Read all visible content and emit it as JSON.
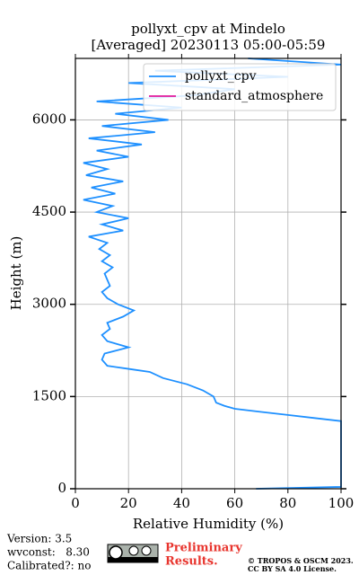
{
  "chart_data": {
    "type": "line",
    "title": "pollyxt_cpv at Mindelo",
    "subtitle": "[Averaged] 20230113 05:00-05:59",
    "x_label": "Relative Humidity (%)",
    "y_label": "Height (m)",
    "y": [
      0,
      30,
      1100,
      1150,
      1200,
      1250,
      1300,
      1350,
      1400,
      1500,
      1600,
      1700,
      1800,
      1900,
      1950,
      2000,
      2100,
      2200,
      2300,
      2400,
      2500,
      2600,
      2700,
      2800,
      2900,
      3000,
      3100,
      3200,
      3300,
      3400,
      3500,
      3600,
      3700,
      3800,
      3900,
      4000,
      4100,
      4200,
      4300,
      4400,
      4500,
      4600,
      4700,
      4800,
      4900,
      5000,
      5100,
      5200,
      5300,
      5400,
      5500,
      5600,
      5700,
      5800,
      5900,
      6000,
      6100,
      6200,
      6300,
      6400,
      6500,
      6600,
      6700,
      6800,
      6900,
      7000
    ],
    "series": [
      {
        "name": "pollyxt_cpv",
        "color": "#1e90ff",
        "values": [
          68,
          100,
          100,
          90,
          80,
          70,
          60,
          56,
          53,
          52,
          48,
          42,
          33,
          28,
          20,
          12,
          10,
          11,
          20,
          12,
          10,
          13,
          12,
          18,
          22,
          16,
          12,
          10,
          13,
          12,
          11,
          14,
          10,
          13,
          9,
          12,
          5,
          18,
          10,
          20,
          8,
          14,
          3,
          15,
          6,
          18,
          4,
          12,
          3,
          20,
          8,
          25,
          5,
          30,
          10,
          35,
          15,
          40,
          8,
          45,
          60,
          20,
          80,
          30,
          100,
          65
        ]
      },
      {
        "name": "standard_atmosphere",
        "color": "#e0199c",
        "values": [
          null,
          null,
          null,
          null,
          null,
          null,
          null,
          null,
          null,
          null,
          null,
          null,
          null,
          null,
          null,
          null,
          null,
          null,
          null,
          null,
          null,
          null,
          null,
          null,
          null,
          null,
          null,
          null,
          null,
          null,
          null,
          null,
          null,
          null,
          null,
          null,
          null,
          null,
          null,
          null,
          null,
          null,
          null,
          null,
          null,
          null,
          null,
          null,
          null,
          null,
          null,
          null,
          null,
          null,
          null,
          null,
          null,
          null,
          null,
          null,
          null,
          null,
          null,
          null,
          null,
          null
        ]
      }
    ],
    "xlim": [
      0,
      100
    ],
    "xticks": [
      0,
      20,
      40,
      60,
      80,
      100
    ],
    "ylim": [
      0,
      7000
    ],
    "yticks": [
      0,
      1500,
      3000,
      4500,
      6000
    ],
    "grid": true,
    "legend": "upper right"
  },
  "footer": {
    "version": "Version: 3.5",
    "wvconst": "wvconst:   8.30",
    "calibrated": "Calibrated?: no",
    "preliminary": [
      "Preliminary",
      "Results."
    ],
    "copyright": [
      "© TROPOS & OSCM 2023.",
      "CC BY SA 4.0 License."
    ]
  }
}
